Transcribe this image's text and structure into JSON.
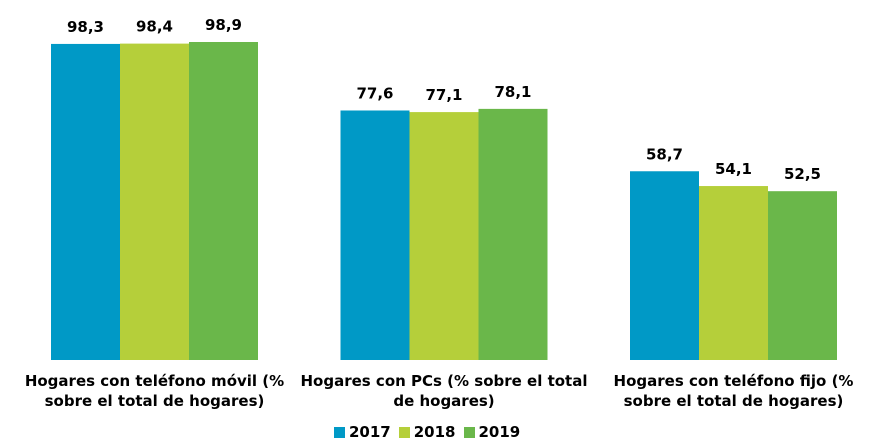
{
  "chart_data": {
    "type": "bar",
    "categories": [
      "Hogares con teléfono móvil (% sobre el total de hogares)",
      "Hogares con PCs (% sobre el total de hogares)",
      "Hogares con teléfono fijo (% sobre el total de hogares)"
    ],
    "series": [
      {
        "name": "2017",
        "color": "#0099c6",
        "values": [
          98.3,
          77.6,
          58.7
        ],
        "value_labels": [
          "98,3",
          "77,6",
          "58,7"
        ]
      },
      {
        "name": "2018",
        "color": "#b5cf3a",
        "values": [
          98.4,
          77.1,
          54.1
        ],
        "value_labels": [
          "98,4",
          "77,1",
          "54,1"
        ]
      },
      {
        "name": "2019",
        "color": "#6ab74a",
        "values": [
          98.9,
          78.1,
          52.5
        ],
        "value_labels": [
          "98,9",
          "78,1",
          "52,5"
        ]
      }
    ],
    "legend": "bottom"
  }
}
